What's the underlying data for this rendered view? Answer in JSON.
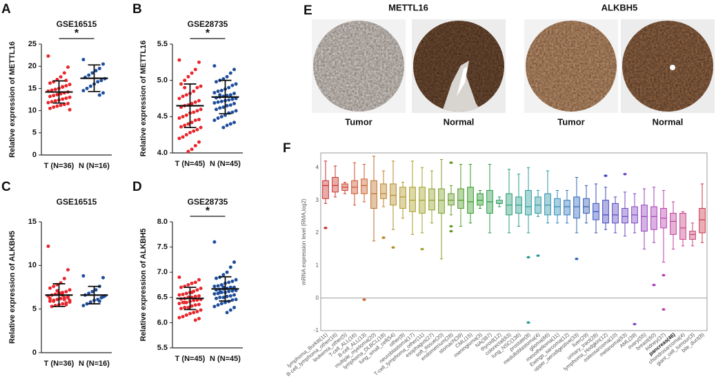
{
  "chart_data": [
    {
      "type": "strip",
      "panel": "A",
      "title": "GSE16515",
      "ylabel": "Relative expression of METTL16",
      "ylim": [
        0,
        25
      ],
      "yticks": [
        0,
        5,
        10,
        15,
        20,
        25
      ],
      "categories": [
        "T (N=36)",
        "N (N=16)"
      ],
      "significance": "*",
      "series": [
        {
          "color": "#e8262b",
          "mean": 14.2,
          "sd": 2.5,
          "values": [
            22.3,
            19.8,
            18.5,
            17.6,
            17.0,
            16.5,
            16.2,
            15.9,
            15.6,
            15.3,
            15.0,
            14.8,
            14.6,
            14.4,
            14.2,
            14.0,
            13.8,
            13.6,
            13.4,
            13.2,
            13.0,
            12.8,
            12.6,
            12.4,
            12.2,
            12.0,
            11.8,
            11.6,
            11.4,
            11.2,
            11.0,
            10.8,
            10.5,
            10.2,
            16.8,
            15.4
          ]
        },
        {
          "color": "#1f4e9c",
          "mean": 17.3,
          "sd": 3.0,
          "values": [
            21.5,
            20.5,
            19.5,
            19.0,
            18.5,
            18.0,
            17.5,
            17.2,
            16.8,
            16.5,
            16.0,
            15.5,
            15.0,
            14.5,
            14.0,
            13.5
          ]
        }
      ]
    },
    {
      "type": "strip",
      "panel": "B",
      "title": "GSE28735",
      "ylabel": "Relative expression of METTL16",
      "ylim": [
        4,
        5.5
      ],
      "yticks": [
        {
          "value": 4,
          "label": "4.0"
        },
        4.5,
        {
          "value": 5,
          "label": "5.0"
        },
        5.5
      ],
      "categories": [
        "T (N=45)",
        "N (N=45)"
      ],
      "significance": "*",
      "series": [
        {
          "color": "#e8262b",
          "mean": 4.65,
          "sd": 0.3,
          "values": [
            5.28,
            5.25,
            5.15,
            5.1,
            5.05,
            5.0,
            4.95,
            4.92,
            4.9,
            4.85,
            4.82,
            4.8,
            4.78,
            4.75,
            4.72,
            4.7,
            4.68,
            4.66,
            4.65,
            4.63,
            4.6,
            4.58,
            4.56,
            4.55,
            4.52,
            4.5,
            4.48,
            4.46,
            4.45,
            4.42,
            4.4,
            4.38,
            4.36,
            4.35,
            4.32,
            4.3,
            4.28,
            4.25,
            4.22,
            4.2,
            4.15,
            4.1,
            4.05,
            4.02,
            4.9
          ]
        },
        {
          "color": "#1f4e9c",
          "mean": 4.77,
          "sd": 0.23,
          "values": [
            5.2,
            5.15,
            5.1,
            5.05,
            5.02,
            5.0,
            4.98,
            4.95,
            4.93,
            4.9,
            4.88,
            4.86,
            4.85,
            4.83,
            4.82,
            4.8,
            4.79,
            4.78,
            4.77,
            4.76,
            4.75,
            4.74,
            4.73,
            4.72,
            4.71,
            4.7,
            4.69,
            4.68,
            4.66,
            4.65,
            4.63,
            4.62,
            4.6,
            4.58,
            4.56,
            4.55,
            4.52,
            4.5,
            4.48,
            4.45,
            4.42,
            4.4,
            4.38,
            4.35,
            4.8
          ]
        }
      ]
    },
    {
      "type": "strip",
      "panel": "C",
      "title": "GSE16515",
      "ylabel": "Relative expression of ALKBH5",
      "ylim": [
        0,
        15
      ],
      "yticks": [
        0,
        5,
        10,
        15
      ],
      "categories": [
        "T (N=36)",
        "N (N=16)"
      ],
      "series": [
        {
          "color": "#e8262b",
          "mean": 6.6,
          "sd": 1.3,
          "values": [
            12.2,
            9.5,
            8.5,
            8.0,
            7.8,
            7.6,
            7.4,
            7.2,
            7.0,
            6.9,
            6.8,
            6.7,
            6.6,
            6.5,
            6.4,
            6.3,
            6.2,
            6.1,
            6.0,
            5.9,
            5.8,
            5.7,
            5.6,
            5.5,
            5.4,
            5.3,
            6.5,
            6.3,
            6.1,
            6.8,
            7.1,
            5.9,
            6.2,
            6.0,
            5.5,
            6.6
          ]
        },
        {
          "color": "#1f4e9c",
          "mean": 6.6,
          "sd": 1.0,
          "values": [
            8.8,
            8.6,
            7.6,
            7.2,
            7.0,
            6.8,
            6.6,
            6.5,
            6.3,
            6.1,
            6.0,
            5.8,
            5.6,
            5.4,
            6.4,
            5.9
          ]
        }
      ]
    },
    {
      "type": "strip",
      "panel": "D",
      "title": "GSE28735",
      "ylabel": "Relative expression of ALKBH5",
      "ylim": [
        5.5,
        8
      ],
      "yticks": [
        5.5,
        {
          "value": 6,
          "label": "6.0"
        },
        6.5,
        {
          "value": 7,
          "label": "7.0"
        },
        7.5,
        {
          "value": 8,
          "label": "8.0"
        }
      ],
      "categories": [
        "T (N=45)",
        "N (N=45)"
      ],
      "significance": "*",
      "series": [
        {
          "color": "#e8262b",
          "mean": 6.48,
          "sd": 0.22,
          "values": [
            6.9,
            6.85,
            6.8,
            6.78,
            6.75,
            6.72,
            6.7,
            6.68,
            6.65,
            6.62,
            6.6,
            6.58,
            6.56,
            6.55,
            6.53,
            6.52,
            6.5,
            6.5,
            6.48,
            6.47,
            6.46,
            6.45,
            6.44,
            6.42,
            6.4,
            6.4,
            6.38,
            6.36,
            6.35,
            6.33,
            6.3,
            6.3,
            6.28,
            6.25,
            6.22,
            6.2,
            6.18,
            6.15,
            6.12,
            6.1,
            6.08,
            6.05,
            6.6,
            6.5,
            6.4
          ]
        },
        {
          "color": "#1f4e9c",
          "mean": 6.67,
          "sd": 0.24,
          "values": [
            7.6,
            7.2,
            7.1,
            7.0,
            6.95,
            6.9,
            6.88,
            6.85,
            6.82,
            6.8,
            6.78,
            6.75,
            6.73,
            6.72,
            6.7,
            6.7,
            6.68,
            6.67,
            6.66,
            6.65,
            6.64,
            6.63,
            6.62,
            6.6,
            6.6,
            6.58,
            6.57,
            6.55,
            6.53,
            6.52,
            6.5,
            6.5,
            6.48,
            6.46,
            6.45,
            6.42,
            6.4,
            6.38,
            6.35,
            6.32,
            6.3,
            6.25,
            6.2,
            6.7,
            6.6
          ]
        }
      ]
    },
    {
      "type": "box",
      "panel": "F",
      "ylabel": "mRNA expression level (RMA,log2)",
      "ylim": [
        -1,
        4.45
      ],
      "yticks": [
        -1,
        0,
        1,
        2,
        3,
        4
      ],
      "reference_line": 0,
      "highlight_category": "pancreas(46)",
      "series": [
        {
          "name": "lymphoma_Burkitt(11)",
          "color": "hsl(0,65%,48%)",
          "min": 2.9,
          "q1": 3.05,
          "median": 3.45,
          "q3": 3.6,
          "max": 4.2,
          "outliers": [
            2.15
          ]
        },
        {
          "name": "B-cell_lymphoma_other(16)",
          "color": "hsl(3,65%,48%)",
          "min": 3.1,
          "q1": 3.25,
          "median": 3.45,
          "q3": 3.7,
          "max": 4.05
        },
        {
          "name": "leukemia_other(5)",
          "color": "hsl(8,65%,48%)",
          "min": 3.2,
          "q1": 3.3,
          "median": 3.4,
          "q3": 3.5,
          "max": 3.55
        },
        {
          "name": "T-cell_ALL(16)",
          "color": "hsl(14,65%,48%)",
          "min": 2.85,
          "q1": 3.2,
          "median": 3.4,
          "q3": 3.6,
          "max": 4.15
        },
        {
          "name": "B-cell_ALL(13)",
          "color": "hsl(20,65%,48%)",
          "min": 2.95,
          "q1": 3.2,
          "median": 3.45,
          "q3": 3.65,
          "max": 4.1,
          "outliers": [
            -0.05
          ]
        },
        {
          "name": "multiple_myeloma(20)",
          "color": "hsl(28,65%,45%)",
          "min": 1.75,
          "q1": 2.75,
          "median": 3.2,
          "q3": 3.6,
          "max": 4.35
        },
        {
          "name": "lymphoma_DLBCL(18)",
          "color": "hsl(36,65%,45%)",
          "min": 2.8,
          "q1": 3.05,
          "median": 3.2,
          "q3": 3.5,
          "max": 3.9,
          "outliers": [
            1.85
          ]
        },
        {
          "name": "lung_small_cell(54)",
          "color": "hsl(42,65%,43%)",
          "min": 2.1,
          "q1": 2.85,
          "median": 3.15,
          "q3": 3.5,
          "max": 4.2,
          "outliers": [
            1.55
          ]
        },
        {
          "name": "other(8)",
          "color": "hsl(48,65%,42%)",
          "min": 2.45,
          "q1": 2.75,
          "median": 3.1,
          "q3": 3.4,
          "max": 3.55
        },
        {
          "name": "neuroblastoma(17)",
          "color": "hsl(55,65%,40%)",
          "min": 1.95,
          "q1": 2.65,
          "median": 3.0,
          "q3": 3.4,
          "max": 4.2
        },
        {
          "name": "T-cell_lymphoma_other(11)",
          "color": "hsl(60,65%,38%)",
          "min": 2.0,
          "q1": 2.6,
          "median": 3.0,
          "q3": 3.4,
          "max": 4.0,
          "outliers": [
            1.5
          ]
        },
        {
          "name": "esophagus(27)",
          "color": "hsl(68,65%,38%)",
          "min": 2.3,
          "q1": 2.7,
          "median": 3.0,
          "q3": 3.35,
          "max": 3.9
        },
        {
          "name": "soft_tissue(20)",
          "color": "hsl(78,65%,38%)",
          "min": 1.2,
          "q1": 2.6,
          "median": 3.0,
          "q3": 3.35,
          "max": 4.25
        },
        {
          "name": "endometrium(28)",
          "color": "hsl(88,60%,38%)",
          "min": 2.55,
          "q1": 2.85,
          "median": 3.0,
          "q3": 3.2,
          "max": 3.45,
          "outliers": [
            4.15,
            2.2,
            2.05
          ]
        },
        {
          "name": "stomach(39)",
          "color": "hsl(100,60%,38%)",
          "min": 2.2,
          "q1": 2.75,
          "median": 3.0,
          "q3": 3.35,
          "max": 4.1
        },
        {
          "name": "CML(15)",
          "color": "hsl(112,60%,38%)",
          "min": 2.3,
          "q1": 2.6,
          "median": 2.95,
          "q3": 3.4,
          "max": 4.1
        },
        {
          "name": "meningioma(3)",
          "color": "hsl(122,60%,38%)",
          "min": 2.75,
          "q1": 2.85,
          "median": 3.0,
          "q3": 3.2,
          "max": 3.3
        },
        {
          "name": "NA(387)",
          "color": "hsl(136,60%,38%)",
          "min": 2.0,
          "q1": 2.6,
          "median": 2.95,
          "q3": 3.3,
          "max": 4.1
        },
        {
          "name": "thyroid(12)",
          "color": "hsl(150,60%,38%)",
          "min": 2.8,
          "q1": 2.9,
          "median": 2.9,
          "q3": 3.0,
          "max": 3.1
        },
        {
          "name": "colorectal(63)",
          "color": "hsl(160,60%,38%)",
          "min": 2.0,
          "q1": 2.55,
          "median": 2.85,
          "q3": 3.2,
          "max": 3.95
        },
        {
          "name": "lung_NSC(136)",
          "color": "hsl(170,60%,38%)",
          "min": 2.2,
          "q1": 2.6,
          "median": 2.85,
          "q3": 3.1,
          "max": 3.8
        },
        {
          "name": "prostate(8)",
          "color": "hsl(178,60%,38%)",
          "min": 2.0,
          "q1": 2.55,
          "median": 2.8,
          "q3": 3.3,
          "max": 4.0,
          "outliers": [
            -0.75,
            1.25
          ]
        },
        {
          "name": "medulloblastoma(4)",
          "color": "hsl(185,60%,40%)",
          "min": 2.5,
          "q1": 2.6,
          "median": 2.85,
          "q3": 3.1,
          "max": 3.3,
          "outliers": [
            1.3
          ]
        },
        {
          "name": "glioma(66)",
          "color": "hsl(192,60%,42%)",
          "min": 2.3,
          "q1": 2.55,
          "median": 2.85,
          "q3": 3.2,
          "max": 3.9
        },
        {
          "name": "mesothelioma(11)",
          "color": "hsl(200,60%,45%)",
          "min": 2.3,
          "q1": 2.55,
          "median": 2.8,
          "q3": 3.05,
          "max": 3.3
        },
        {
          "name": "Ewings_sarcoma(12)",
          "color": "hsl(208,60%,45%)",
          "min": 2.3,
          "q1": 2.55,
          "median": 2.8,
          "q3": 3.0,
          "max": 3.3
        },
        {
          "name": "upper_aerodigestive(33)",
          "color": "hsl(215,60%,45%)",
          "min": 2.0,
          "q1": 2.45,
          "median": 2.8,
          "q3": 3.1,
          "max": 3.7,
          "outliers": [
            1.2
          ]
        },
        {
          "name": "liver(29)",
          "color": "hsl(222,55%,45%)",
          "min": 2.3,
          "q1": 2.6,
          "median": 2.8,
          "q3": 3.05,
          "max": 3.45
        },
        {
          "name": "urinary_tract(28)",
          "color": "hsl(230,55%,48%)",
          "min": 2.0,
          "q1": 2.4,
          "median": 2.65,
          "q3": 2.9,
          "max": 3.5
        },
        {
          "name": "lymphoma_Hodgkin(12)",
          "color": "hsl(238,50%,50%)",
          "min": 2.1,
          "q1": 2.3,
          "median": 2.55,
          "q3": 3.0,
          "max": 3.4,
          "outliers": [
            3.75
          ]
        },
        {
          "name": "osteosarcoma(10)",
          "color": "hsl(248,50%,52%)",
          "min": 2.0,
          "q1": 2.3,
          "median": 2.55,
          "q3": 2.9,
          "max": 3.1
        },
        {
          "name": "melanoma(63)",
          "color": "hsl(258,50%,52%)",
          "min": 1.9,
          "q1": 2.3,
          "median": 2.5,
          "q3": 2.75,
          "max": 3.25,
          "outliers": [
            3.8
          ]
        },
        {
          "name": "AML(39)",
          "color": "hsl(268,50%,52%)",
          "min": 2.0,
          "q1": 2.3,
          "median": 2.55,
          "q3": 2.8,
          "max": 3.2,
          "outliers": [
            -0.8
          ]
        },
        {
          "name": "ovary(55)",
          "color": "hsl(280,50%,50%)",
          "min": 1.5,
          "q1": 2.05,
          "median": 2.5,
          "q3": 2.85,
          "max": 3.35
        },
        {
          "name": "breast(60)",
          "color": "hsl(292,50%,48%)",
          "min": 1.7,
          "q1": 2.1,
          "median": 2.5,
          "q3": 2.8,
          "max": 3.4,
          "outliers": [
            0.4
          ]
        },
        {
          "name": "kidney(37)",
          "color": "hsl(305,50%,48%)",
          "min": 1.1,
          "q1": 2.15,
          "median": 2.45,
          "q3": 2.75,
          "max": 3.3,
          "outliers": [
            0.7,
            -0.35
          ]
        },
        {
          "name": "pancreas(46)",
          "color": "hsl(318,50%,50%)",
          "min": 1.5,
          "q1": 1.95,
          "median": 2.35,
          "q3": 2.6,
          "max": 2.95
        },
        {
          "name": "chondrosarcoma(4)",
          "color": "hsl(328,55%,52%)",
          "min": 1.6,
          "q1": 1.8,
          "median": 2.15,
          "q3": 2.6,
          "max": 2.65
        },
        {
          "name": "giant_cell_tumour(3)",
          "color": "hsl(338,55%,52%)",
          "min": 1.6,
          "q1": 1.8,
          "median": 1.95,
          "q3": 2.05,
          "max": 2.3
        },
        {
          "name": "bile_duct(8)",
          "color": "hsl(352,60%,50%)",
          "min": 1.7,
          "q1": 2.0,
          "median": 2.4,
          "q3": 2.75,
          "max": 3.5
        }
      ]
    }
  ],
  "figure_e": {
    "panel": "E",
    "groups": [
      {
        "title": "METTL16",
        "images": [
          {
            "caption": "Tumor"
          },
          {
            "caption": "Normal"
          }
        ]
      },
      {
        "title": "ALKBH5",
        "images": [
          {
            "caption": "Tumor"
          },
          {
            "caption": "Normal"
          }
        ]
      }
    ]
  }
}
